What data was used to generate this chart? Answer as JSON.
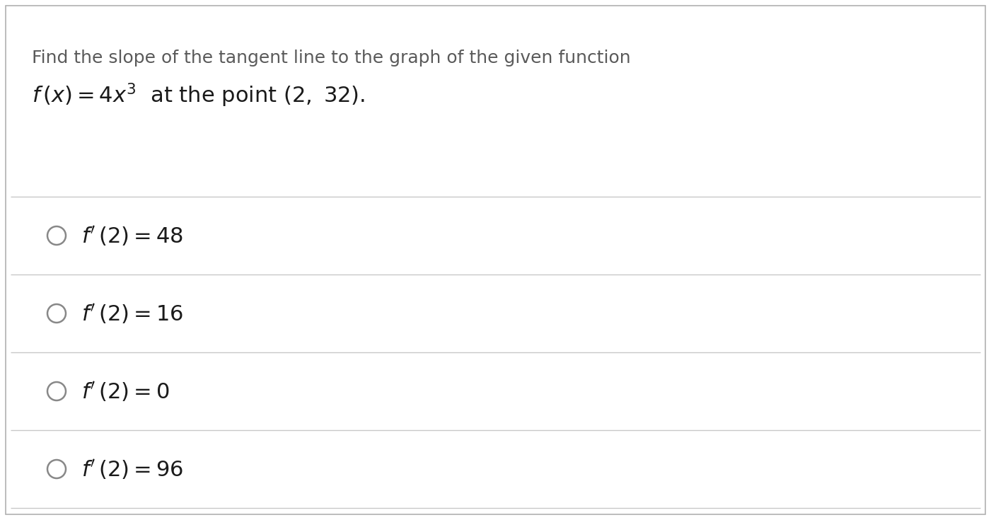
{
  "background_color": "#ffffff",
  "border_color": "#b0b0b0",
  "question_line1": "Find the slope of the tangent line to the graph of the given function",
  "question_line2": "$f\\,(x) = 4x^3$  at the point $(2,\\ 32)$.",
  "options": [
    "$f'\\,(2) = 48$",
    "$f'\\,(2) = 16$",
    "$f'\\,(2) = 0$",
    "$f'\\,(2) = 96$"
  ],
  "text_color": "#5a5a5a",
  "option_text_color": "#1a1a1a",
  "line_color": "#c8c8c8",
  "circle_color": "#888888",
  "question_fontsize": 18,
  "option_fontsize": 22,
  "line2_fontsize": 22,
  "fig_width": 14.01,
  "fig_height": 7.35,
  "dpi": 100
}
